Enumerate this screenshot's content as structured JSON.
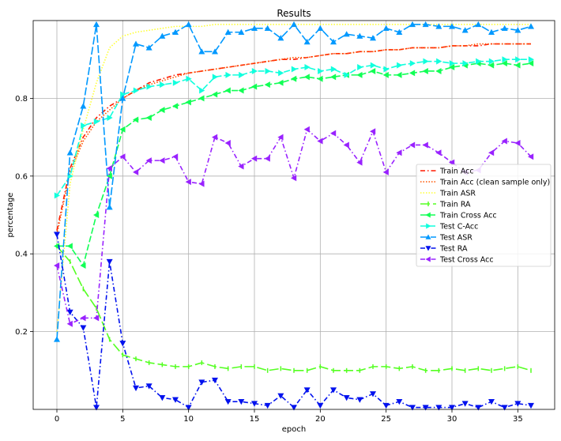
{
  "chart_data": {
    "type": "line",
    "title": "Results",
    "xlabel": "epoch",
    "ylabel": "percentage",
    "xlim": [
      -1.8,
      37.8
    ],
    "ylim": [
      0.0,
      1.0
    ],
    "xticks": [
      0,
      5,
      10,
      15,
      20,
      25,
      30,
      35
    ],
    "yticks": [
      0.2,
      0.4,
      0.6,
      0.8
    ],
    "grid": true,
    "legend_position": "center-right",
    "x": [
      0,
      1,
      2,
      3,
      4,
      5,
      6,
      7,
      8,
      9,
      10,
      11,
      12,
      13,
      14,
      15,
      16,
      17,
      18,
      19,
      20,
      21,
      22,
      23,
      24,
      25,
      26,
      27,
      28,
      29,
      30,
      31,
      32,
      33,
      34,
      35,
      36
    ],
    "series": [
      {
        "name": "Train Acc",
        "color": "#ff1a00",
        "dash": "6,3,1.5,3",
        "marker": "none",
        "values": [
          0.46,
          0.62,
          0.7,
          0.75,
          0.78,
          0.8,
          0.82,
          0.84,
          0.85,
          0.86,
          0.865,
          0.87,
          0.875,
          0.88,
          0.885,
          0.89,
          0.895,
          0.9,
          0.9,
          0.905,
          0.91,
          0.915,
          0.915,
          0.92,
          0.92,
          0.925,
          0.925,
          0.93,
          0.93,
          0.93,
          0.935,
          0.935,
          0.935,
          0.94,
          0.94,
          0.94,
          0.94
        ]
      },
      {
        "name": "Train Acc (clean sample only)",
        "color": "#ff5500",
        "dash": "1.5,2",
        "marker": "none",
        "values": [
          0.45,
          0.61,
          0.69,
          0.74,
          0.77,
          0.8,
          0.82,
          0.835,
          0.845,
          0.855,
          0.865,
          0.87,
          0.875,
          0.88,
          0.885,
          0.89,
          0.895,
          0.9,
          0.905,
          0.905,
          0.91,
          0.915,
          0.915,
          0.92,
          0.92,
          0.925,
          0.925,
          0.93,
          0.93,
          0.93,
          0.935,
          0.935,
          0.94,
          0.94,
          0.94,
          0.94,
          0.94
        ]
      },
      {
        "name": "Train ASR",
        "color": "#ffff33",
        "dash": "1.5,2",
        "marker": "none",
        "values": [
          0.2,
          0.58,
          0.72,
          0.84,
          0.93,
          0.96,
          0.97,
          0.975,
          0.98,
          0.985,
          0.985,
          0.985,
          0.99,
          0.99,
          0.99,
          0.99,
          0.99,
          0.99,
          0.99,
          0.99,
          0.99,
          0.99,
          0.99,
          0.99,
          0.99,
          0.99,
          0.99,
          0.99,
          0.99,
          0.99,
          0.99,
          0.99,
          0.99,
          0.99,
          0.99,
          0.99,
          0.99
        ]
      },
      {
        "name": "Train RA",
        "color": "#55ff22",
        "dash": "12,4",
        "marker": "tick",
        "values": [
          0.42,
          0.38,
          0.31,
          0.26,
          0.18,
          0.14,
          0.13,
          0.12,
          0.115,
          0.11,
          0.11,
          0.12,
          0.11,
          0.105,
          0.11,
          0.11,
          0.1,
          0.105,
          0.1,
          0.1,
          0.11,
          0.1,
          0.1,
          0.1,
          0.11,
          0.11,
          0.105,
          0.11,
          0.1,
          0.1,
          0.105,
          0.1,
          0.105,
          0.1,
          0.105,
          0.11,
          0.1
        ]
      },
      {
        "name": "Train Cross Acc",
        "color": "#11ff55",
        "dash": "8,3",
        "marker": "triangle-left",
        "values": [
          0.42,
          0.42,
          0.37,
          0.5,
          0.6,
          0.72,
          0.745,
          0.75,
          0.77,
          0.78,
          0.79,
          0.8,
          0.81,
          0.82,
          0.82,
          0.83,
          0.835,
          0.84,
          0.85,
          0.855,
          0.85,
          0.855,
          0.86,
          0.86,
          0.87,
          0.86,
          0.86,
          0.865,
          0.87,
          0.87,
          0.88,
          0.885,
          0.89,
          0.885,
          0.89,
          0.885,
          0.89
        ]
      },
      {
        "name": "Test C-Acc",
        "color": "#11ffdd",
        "dash": "8,3",
        "marker": "triangle-right",
        "values": [
          0.55,
          0.6,
          0.73,
          0.74,
          0.75,
          0.81,
          0.82,
          0.83,
          0.835,
          0.84,
          0.85,
          0.82,
          0.855,
          0.86,
          0.86,
          0.87,
          0.87,
          0.865,
          0.875,
          0.88,
          0.87,
          0.875,
          0.86,
          0.88,
          0.885,
          0.875,
          0.885,
          0.89,
          0.895,
          0.895,
          0.89,
          0.89,
          0.895,
          0.895,
          0.9,
          0.9,
          0.9
        ]
      },
      {
        "name": "Test ASR",
        "color": "#0099ff",
        "dash": "10,3",
        "marker": "triangle-up",
        "values": [
          0.18,
          0.66,
          0.78,
          0.99,
          0.52,
          0.8,
          0.94,
          0.93,
          0.96,
          0.97,
          0.99,
          0.92,
          0.92,
          0.97,
          0.97,
          0.98,
          0.98,
          0.955,
          0.99,
          0.945,
          0.98,
          0.945,
          0.965,
          0.96,
          0.955,
          0.98,
          0.97,
          0.99,
          0.99,
          0.985,
          0.985,
          0.975,
          0.99,
          0.97,
          0.98,
          0.975,
          0.985
        ]
      },
      {
        "name": "Test RA",
        "color": "#0011ee",
        "dash": "6,3,1.5,3",
        "marker": "triangle-down",
        "values": [
          0.45,
          0.25,
          0.21,
          0.005,
          0.38,
          0.17,
          0.055,
          0.06,
          0.03,
          0.025,
          0.005,
          0.07,
          0.075,
          0.02,
          0.02,
          0.015,
          0.01,
          0.035,
          0.005,
          0.05,
          0.01,
          0.05,
          0.03,
          0.025,
          0.04,
          0.01,
          0.02,
          0.005,
          0.005,
          0.005,
          0.005,
          0.015,
          0.005,
          0.02,
          0.005,
          0.015,
          0.01
        ]
      },
      {
        "name": "Test Cross Acc",
        "color": "#9922ff",
        "dash": "6,3,1.5,3",
        "marker": "triangle-left",
        "values": [
          0.37,
          0.22,
          0.235,
          0.235,
          0.62,
          0.65,
          0.61,
          0.64,
          0.64,
          0.65,
          0.585,
          0.58,
          0.7,
          0.685,
          0.625,
          0.645,
          0.645,
          0.7,
          0.595,
          0.72,
          0.69,
          0.71,
          0.68,
          0.635,
          0.715,
          0.61,
          0.66,
          0.68,
          0.68,
          0.66,
          0.635,
          0.61,
          0.615,
          0.66,
          0.69,
          0.685,
          0.65
        ]
      }
    ]
  }
}
